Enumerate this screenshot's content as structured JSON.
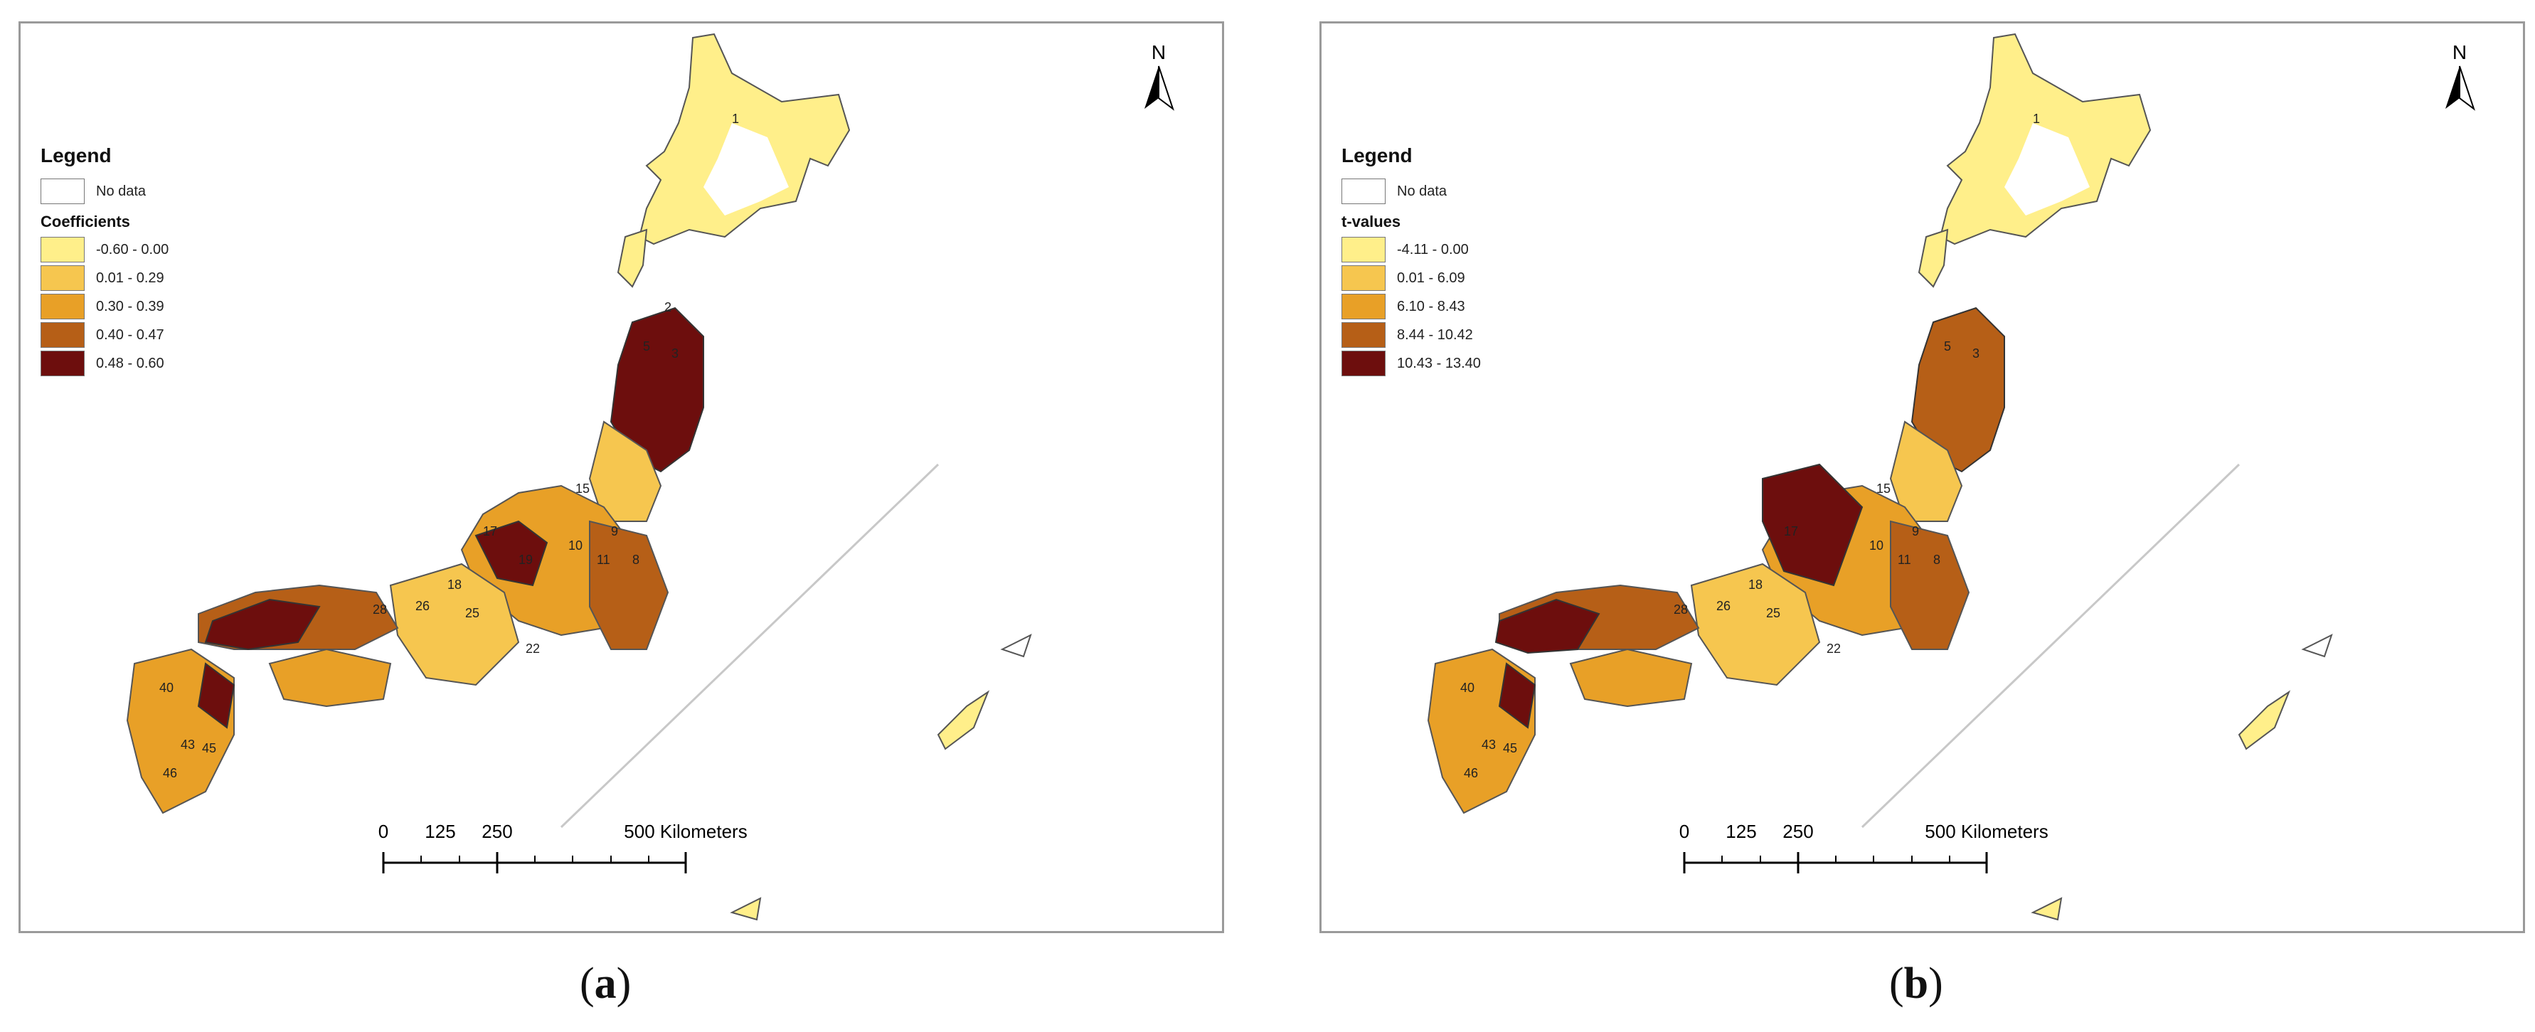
{
  "panels": [
    {
      "id": "a",
      "caption_letter": "a",
      "north_label": "N",
      "legend": {
        "title": "Legend",
        "no_data_label": "No data",
        "field_title": "Coefficients",
        "classes": [
          {
            "label": "-0.60 - 0.00",
            "color": "#ffef8a"
          },
          {
            "label": "0.01 - 0.29",
            "color": "#f6c64f"
          },
          {
            "label": "0.30 - 0.39",
            "color": "#e8a027"
          },
          {
            "label": "0.40 - 0.47",
            "color": "#b65f17"
          },
          {
            "label": "0.48 - 0.60",
            "color": "#6d0e0d"
          }
        ]
      },
      "scale_bar": {
        "labels": [
          "0",
          "125",
          "250",
          "500 Kilometers"
        ]
      },
      "prefecture_labels": [
        "1",
        "2",
        "5",
        "3",
        "15",
        "17",
        "19",
        "10",
        "9",
        "11",
        "8",
        "18",
        "25",
        "26",
        "28",
        "22",
        "40",
        "43",
        "45",
        "46"
      ]
    },
    {
      "id": "b",
      "caption_letter": "b",
      "north_label": "N",
      "legend": {
        "title": "Legend",
        "no_data_label": "No data",
        "field_title": "t-values",
        "classes": [
          {
            "label": "-4.11 - 0.00",
            "color": "#ffef8a"
          },
          {
            "label": "0.01 - 6.09",
            "color": "#f6c64f"
          },
          {
            "label": "6.10 - 8.43",
            "color": "#e8a027"
          },
          {
            "label": "8.44 - 10.42",
            "color": "#b65f17"
          },
          {
            "label": "10.43 - 13.40",
            "color": "#6d0e0d"
          }
        ]
      },
      "scale_bar": {
        "labels": [
          "0",
          "125",
          "250",
          "500 Kilometers"
        ]
      },
      "prefecture_labels": [
        "1",
        "5",
        "3",
        "15",
        "17",
        "10",
        "9",
        "11",
        "8",
        "18",
        "25",
        "26",
        "28",
        "22",
        "40",
        "43",
        "45",
        "46"
      ]
    }
  ]
}
